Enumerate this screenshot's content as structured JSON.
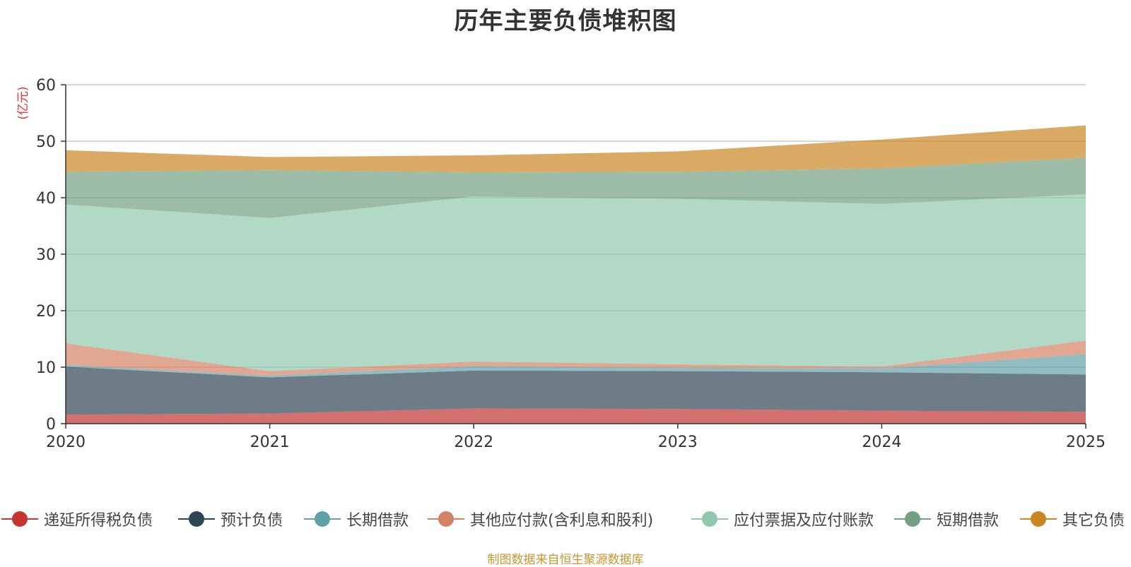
{
  "chart_data": {
    "type": "area",
    "stacked": true,
    "title": "历年主要负债堆积图",
    "ylabel": "(亿元)",
    "xlabel": "",
    "x": [
      "2020",
      "2021",
      "2022",
      "2023",
      "2024",
      "2025"
    ],
    "ylim": [
      0,
      60
    ],
    "yticks": [
      0,
      10,
      20,
      30,
      40,
      50,
      60
    ],
    "grid": true,
    "legend_position": "bottom",
    "series": [
      {
        "name": "递延所得税负债",
        "color": "#c23531",
        "values": [
          1.6,
          1.8,
          2.7,
          2.6,
          2.3,
          2.1
        ]
      },
      {
        "name": "预计负债",
        "color": "#2f4554",
        "values": [
          8.5,
          6.4,
          6.7,
          6.7,
          6.8,
          6.6
        ]
      },
      {
        "name": "长期借款",
        "color": "#61a0a8",
        "values": [
          0.3,
          0.3,
          0.8,
          0.6,
          0.7,
          3.6
        ]
      },
      {
        "name": "其他应付款(含利息和股利)",
        "color": "#d48265",
        "values": [
          3.8,
          0.8,
          0.8,
          0.6,
          0.3,
          2.4
        ]
      },
      {
        "name": "应付票据及应付账款",
        "color": "#91c7ae",
        "values": [
          24.6,
          27.1,
          29.2,
          29.3,
          28.8,
          25.9
        ]
      },
      {
        "name": "短期借款",
        "color": "#749f83",
        "values": [
          5.8,
          8.5,
          4.3,
          4.8,
          6.3,
          6.5
        ]
      },
      {
        "name": "其它负债",
        "color": "#ca8622",
        "values": [
          3.8,
          2.3,
          3.0,
          3.6,
          5.1,
          5.7
        ]
      }
    ]
  },
  "source": "制图数据来自恒生聚源数据库"
}
